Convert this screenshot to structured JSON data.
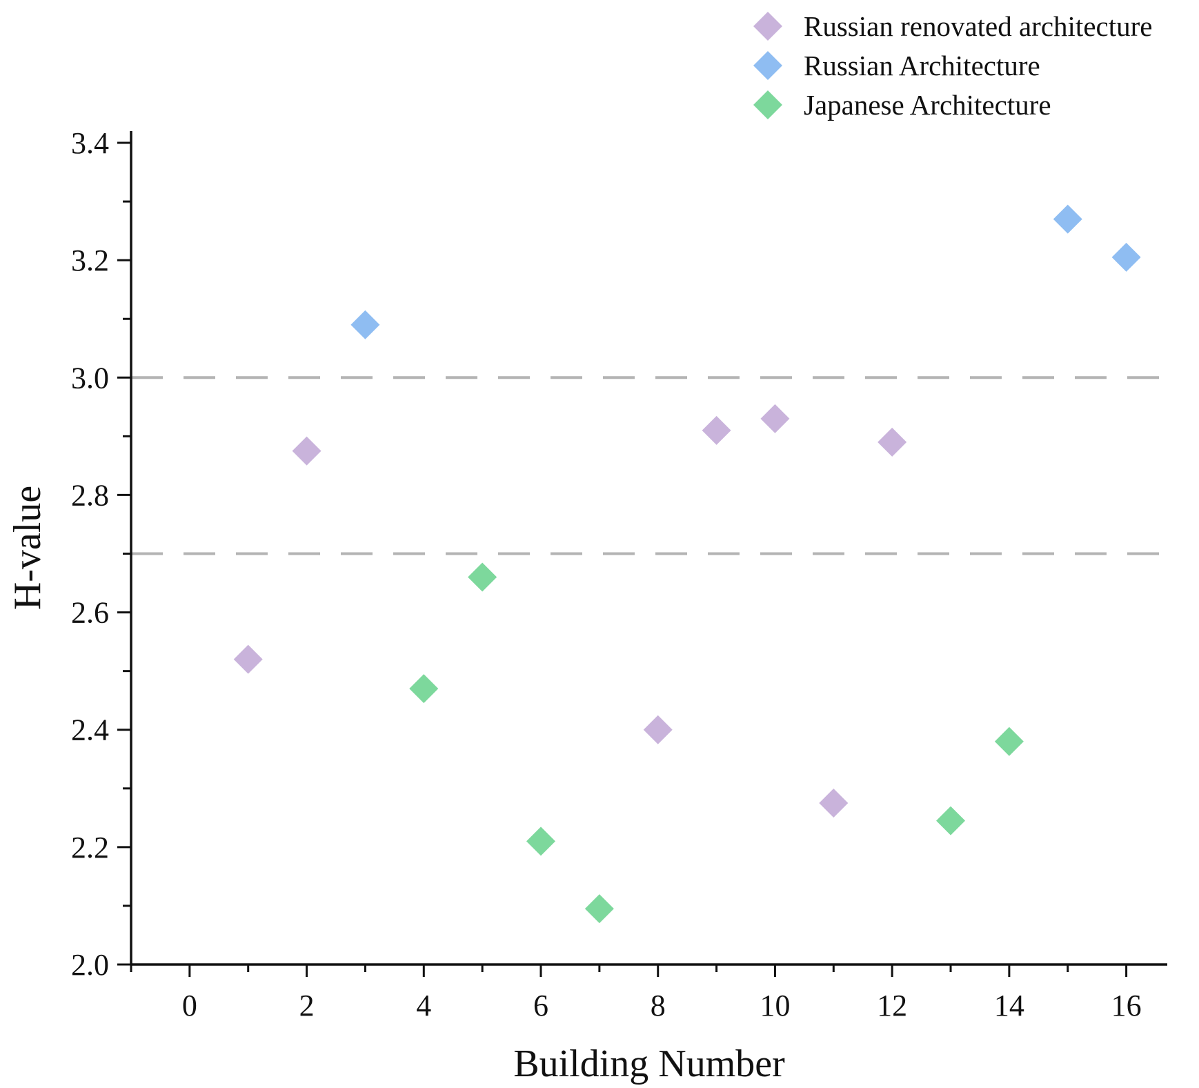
{
  "chart_data": {
    "type": "scatter",
    "title": "",
    "xlabel": "Building Number",
    "ylabel": "H-value",
    "xlim": [
      -1,
      16.7
    ],
    "ylim": [
      2.0,
      3.42
    ],
    "xticks": [
      0,
      2,
      4,
      6,
      8,
      10,
      12,
      14,
      16
    ],
    "xtick_labels": [
      "0",
      "2",
      "4",
      "6",
      "8",
      "10",
      "12",
      "14",
      "16"
    ],
    "xminor": [
      -1,
      1,
      3,
      5,
      7,
      9,
      11,
      13,
      15
    ],
    "yticks": [
      2.0,
      2.2,
      2.4,
      2.6,
      2.8,
      3.0,
      3.2,
      3.4
    ],
    "ytick_labels": [
      "2.0",
      "2.2",
      "2.4",
      "2.6",
      "2.8",
      "3.0",
      "3.2",
      "3.4"
    ],
    "yminor": [
      2.1,
      2.3,
      2.5,
      2.7,
      2.9,
      3.1,
      3.3
    ],
    "reference_lines": [
      3.0,
      2.7
    ],
    "legend_position": "top-right",
    "series": [
      {
        "name": "Russian renovated architecture",
        "color": "#c9b3db",
        "points": [
          {
            "x": 1,
            "y": 2.52
          },
          {
            "x": 2,
            "y": 2.875
          },
          {
            "x": 8,
            "y": 2.4
          },
          {
            "x": 9,
            "y": 2.91
          },
          {
            "x": 10,
            "y": 2.93
          },
          {
            "x": 11,
            "y": 2.275
          },
          {
            "x": 12,
            "y": 2.89
          }
        ]
      },
      {
        "name": " Russian Architecture",
        "color": "#8fbdf2",
        "points": [
          {
            "x": 3,
            "y": 3.09
          },
          {
            "x": 15,
            "y": 3.27
          },
          {
            "x": 16,
            "y": 3.205
          }
        ]
      },
      {
        "name": " Japanese Architecture",
        "color": "#7dd89c",
        "points": [
          {
            "x": 4,
            "y": 2.47
          },
          {
            "x": 5,
            "y": 2.66
          },
          {
            "x": 6,
            "y": 2.21
          },
          {
            "x": 7,
            "y": 2.095
          },
          {
            "x": 13,
            "y": 2.245
          },
          {
            "x": 14,
            "y": 2.38
          }
        ]
      }
    ]
  }
}
